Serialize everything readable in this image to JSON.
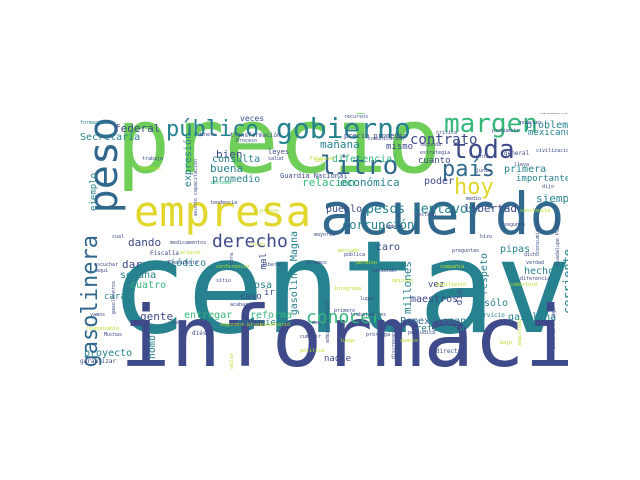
{
  "palette": {
    "purple": "#3e4a89",
    "darkblue": "#31688e",
    "teal": "#26828e",
    "green": "#35b779",
    "lightgreen": "#6ece58",
    "yellowgreen": "#b5de2b",
    "yellow": "#e0d72a",
    "deep": "#440154"
  },
  "words": [
    {
      "text": "centavo",
      "color": "teal"
    },
    {
      "text": "información",
      "color": "purple"
    },
    {
      "text": "precio",
      "color": "lightgreen"
    },
    {
      "text": "acuerdo",
      "color": "darkblue"
    },
    {
      "text": "empresa",
      "color": "yellow"
    },
    {
      "text": "peso",
      "color": "darkblue"
    },
    {
      "text": "gasolinera",
      "color": "darkblue"
    },
    {
      "text": "gobierno",
      "color": "teal"
    },
    {
      "text": "litro",
      "color": "darkblue"
    },
    {
      "text": "público",
      "color": "teal"
    },
    {
      "text": "margen",
      "color": "green"
    },
    {
      "text": "derecho",
      "color": "purple"
    },
    {
      "text": "conocer",
      "color": "green"
    },
    {
      "text": "toda",
      "color": "purple"
    },
    {
      "text": "país",
      "color": "darkblue"
    },
    {
      "text": "hoy",
      "color": "yellow"
    },
    {
      "text": "pesos centavos",
      "color": "teal"
    },
    {
      "text": "contrato",
      "color": "purple"
    },
    {
      "text": "mañana",
      "color": "teal"
    },
    {
      "text": "federal",
      "color": "purple"
    },
    {
      "text": "bien",
      "color": "purple"
    },
    {
      "text": "consulta",
      "color": "teal"
    },
    {
      "text": "buena",
      "color": "teal"
    },
    {
      "text": "promedio",
      "color": "teal"
    },
    {
      "text": "relación",
      "color": "green"
    },
    {
      "text": "diferencial",
      "color": "green"
    },
    {
      "text": "económica",
      "color": "teal"
    },
    {
      "text": "poder",
      "color": "purple"
    },
    {
      "text": "mismo",
      "color": "purple"
    },
    {
      "text": "cuanto",
      "color": "purple"
    },
    {
      "text": "corrupción",
      "color": "teal"
    },
    {
      "text": "libertad",
      "color": "purple"
    },
    {
      "text": "pueblo",
      "color": "purple"
    },
    {
      "text": "primera",
      "color": "teal"
    },
    {
      "text": "siempre",
      "color": "teal"
    },
    {
      "text": "problema",
      "color": "teal"
    },
    {
      "text": "mexicanos",
      "color": "teal"
    },
    {
      "text": "importante",
      "color": "teal"
    },
    {
      "text": "Secretaría",
      "color": "teal"
    },
    {
      "text": "dando",
      "color": "purple"
    },
    {
      "text": "dar",
      "color": "purple"
    },
    {
      "text": "semana",
      "color": "teal"
    },
    {
      "text": "cuatro",
      "color": "green"
    },
    {
      "text": "cosa",
      "color": "teal"
    },
    {
      "text": "gente",
      "color": "purple"
    },
    {
      "text": "entregar",
      "color": "green"
    },
    {
      "text": "reforma",
      "color": "green"
    },
    {
      "text": "movimiento",
      "color": "teal"
    },
    {
      "text": "Pemex",
      "color": "darkblue"
    },
    {
      "text": "elementos",
      "color": "teal"
    },
    {
      "text": "refinería",
      "color": "teal"
    },
    {
      "text": "maestros",
      "color": "purple"
    },
    {
      "text": "caro",
      "color": "purple"
    },
    {
      "text": "millones",
      "color": "teal"
    },
    {
      "text": "respeto",
      "color": "teal"
    },
    {
      "text": "hecho",
      "color": "teal"
    },
    {
      "text": "sólo",
      "color": "teal"
    },
    {
      "text": "gasolina",
      "color": "teal"
    },
    {
      "text": "corriente",
      "color": "teal"
    },
    {
      "text": "proyecto",
      "color": "teal"
    },
    {
      "text": "periódico",
      "color": "teal"
    },
    {
      "text": "hombre",
      "color": "teal"
    },
    {
      "text": "nadie",
      "color": "purple"
    },
    {
      "text": "pipas",
      "color": "teal"
    },
    {
      "text": "vez",
      "color": "purple"
    },
    {
      "text": "dio",
      "color": "purple"
    },
    {
      "text": "ir",
      "color": "purple"
    },
    {
      "text": "mal",
      "color": "purple"
    },
    {
      "text": "caso",
      "color": "purple"
    },
    {
      "text": "ejemplo",
      "color": "teal"
    },
    {
      "text": "expresión",
      "color": "teal"
    },
    {
      "text": "gasolina Magna",
      "color": "teal"
    },
    {
      "text": "Guardia Nacional",
      "color": "purple"
    },
    {
      "text": "veces",
      "color": "purple"
    },
    {
      "text": "leyes",
      "color": "purple"
    },
    {
      "text": "precio promedio",
      "color": "purple"
    },
    {
      "text": "transformación",
      "color": "purple"
    },
    {
      "text": "servicio",
      "color": "teal"
    },
    {
      "text": "directa",
      "color": "purple"
    },
    {
      "text": "garantizar",
      "color": "purple"
    },
    {
      "text": "cara",
      "color": "teal"
    },
    {
      "text": "formación",
      "color": "teal"
    },
    {
      "text": "propuesta",
      "color": "purple"
    },
    {
      "text": "general",
      "color": "purple"
    },
    {
      "text": "verdad",
      "color": "purple"
    },
    {
      "text": "diferencia",
      "color": "purple"
    },
    {
      "text": "nuestro",
      "color": "purple"
    },
    {
      "text": "crítica",
      "color": "purple"
    },
    {
      "text": "medio",
      "color": "purple"
    },
    {
      "text": "kilómetros",
      "color": "purple"
    },
    {
      "text": "civilización",
      "color": "purple"
    },
    {
      "text": "tendencia",
      "color": "purple"
    },
    {
      "text": "medicamentos",
      "color": "purple"
    },
    {
      "text": "Fiscalía",
      "color": "purple"
    },
    {
      "text": "diésel",
      "color": "purple"
    },
    {
      "text": "trabajadores",
      "color": "purple"
    },
    {
      "text": "perjudica",
      "color": "purple"
    },
    {
      "text": "prórroga",
      "color": "purple"
    },
    {
      "text": "cumplir",
      "color": "purple"
    },
    {
      "text": "Proceso",
      "color": "purple"
    },
    {
      "text": "trabajo",
      "color": "purple"
    },
    {
      "text": "mayoría",
      "color": "purple"
    },
    {
      "text": "acabar",
      "color": "purple"
    },
    {
      "text": "obra",
      "color": "purple"
    },
    {
      "text": "estrategia",
      "color": "purple"
    },
    {
      "text": "dijo",
      "color": "purple"
    },
    {
      "text": "haciendo",
      "color": "purple"
    },
    {
      "text": "lugar",
      "color": "purple"
    },
    {
      "text": "preguntas",
      "color": "purple"
    },
    {
      "text": "saber",
      "color": "purple"
    },
    {
      "text": "Muchas",
      "color": "purple"
    },
    {
      "text": "dinero",
      "color": "purple"
    },
    {
      "text": "vamos",
      "color": "purple"
    },
    {
      "text": "aquí",
      "color": "purple"
    },
    {
      "text": "cual",
      "color": "purple"
    },
    {
      "text": "escuchar",
      "color": "purple"
    },
    {
      "text": "recursos",
      "color": "purple"
    },
    {
      "text": "comunicación",
      "color": "purple"
    },
    {
      "text": "segunda",
      "color": "purple"
    },
    {
      "text": "junio",
      "color": "purple"
    },
    {
      "text": "venta",
      "color": "purple"
    },
    {
      "text": "sistema",
      "color": "green"
    },
    {
      "text": "lleva",
      "color": "purple"
    },
    {
      "text": "Guadalupe Puebla",
      "color": "purple"
    },
    {
      "text": "asunto capacitación",
      "color": "purple"
    },
    {
      "text": "primero",
      "color": "purple"
    },
    {
      "text": "discrepancia",
      "color": "purple"
    },
    {
      "text": "gasolineros",
      "color": "purple"
    },
    {
      "text": "sitio",
      "color": "purple"
    },
    {
      "text": "Salinas Pliego",
      "color": "purple"
    },
    {
      "text": "liberal",
      "color": "purple"
    },
    {
      "text": "dicho",
      "color": "purple"
    },
    {
      "text": "administración",
      "color": "purple"
    },
    {
      "text": "salud",
      "color": "purple"
    },
    {
      "text": "puede",
      "color": "purple"
    },
    {
      "text": "hizo",
      "color": "purple"
    },
    {
      "text": "fiti",
      "color": "purple"
    },
    {
      "text": "consumidores",
      "color": "purple"
    },
    {
      "text": "segundo",
      "color": "purple"
    },
    {
      "text": "estado",
      "color": "purple"
    },
    {
      "text": "estamos",
      "color": "purple"
    },
    {
      "text": "pública",
      "color": "purple"
    },
    {
      "text": "mes",
      "color": "purple"
    },
    {
      "text": "Presidente",
      "color": "purple"
    },
    {
      "text": "Finanzas",
      "color": "yellowgreen"
    },
    {
      "text": "aclarar",
      "color": "yellowgreen"
    },
    {
      "text": "podemos",
      "color": "yellowgreen"
    },
    {
      "text": "estableció",
      "color": "yellowgreen"
    },
    {
      "text": "opinión",
      "color": "yellowgreen"
    },
    {
      "text": "manifiesto",
      "color": "yellowgreen"
    },
    {
      "text": "constancia",
      "color": "yellowgreen"
    },
    {
      "text": "seguridad",
      "color": "yellowgreen"
    },
    {
      "text": "política",
      "color": "yellowgreen"
    },
    {
      "text": "prensa",
      "color": "yellowgreen"
    },
    {
      "text": "ley",
      "color": "yellowgreen"
    },
    {
      "text": "mercado",
      "color": "yellowgreen"
    },
    {
      "text": "segundos pisos",
      "color": "yellowgreen"
    },
    {
      "text": "conferencia",
      "color": "yellowgreen"
    },
    {
      "text": "hablar",
      "color": "yellowgreen"
    },
    {
      "text": "responsable",
      "color": "yellowgreen"
    },
    {
      "text": "permiso",
      "color": "yellowgreen"
    },
    {
      "text": "costo",
      "color": "yellowgreen"
    },
    {
      "text": "luego",
      "color": "yellowgreen"
    },
    {
      "text": "integrada",
      "color": "yellowgreen"
    },
    {
      "text": "avance",
      "color": "yellowgreen"
    },
    {
      "text": "compañía",
      "color": "yellowgreen"
    },
    {
      "text": "bajo",
      "color": "yellowgreen"
    },
    {
      "text": "cobertura",
      "color": "yellowgreen"
    }
  ]
}
